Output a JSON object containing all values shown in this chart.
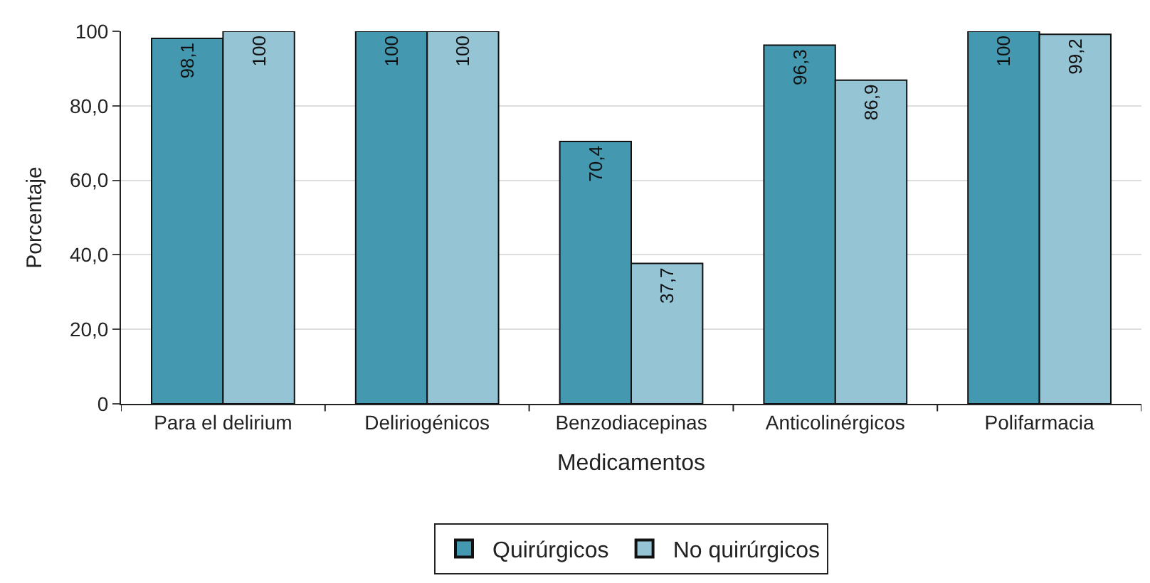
{
  "chart_data": {
    "type": "bar",
    "xlabel": "Medicamentos",
    "ylabel": "Porcentaje",
    "categories": [
      "Para el delirium",
      "Deliriogénicos",
      "Benzodiacepinas",
      "Anticolinérgicos",
      "Polifarmacia"
    ],
    "series": [
      {
        "name": "Quirúrgicos",
        "color": "#4498b0",
        "values": [
          98.1,
          100,
          70.4,
          96.3,
          100
        ],
        "value_labels": [
          "98,1",
          "100",
          "70,4",
          "96,3",
          "100"
        ]
      },
      {
        "name": "No quirúrgicos",
        "color": "#95c4d5",
        "values": [
          100,
          100,
          37.7,
          86.9,
          99.2
        ],
        "value_labels": [
          "100",
          "100",
          "37,7",
          "86,9",
          "99,2"
        ]
      }
    ],
    "ylim": [
      0,
      100
    ],
    "yticks": [
      0,
      {
        "value": 20,
        "label": "20,0"
      },
      {
        "value": 40,
        "label": "40,0"
      },
      {
        "value": 60,
        "label": "60,0"
      },
      {
        "value": 80,
        "label": "80,0"
      },
      100
    ],
    "grid": "y",
    "legend": "bottom"
  }
}
